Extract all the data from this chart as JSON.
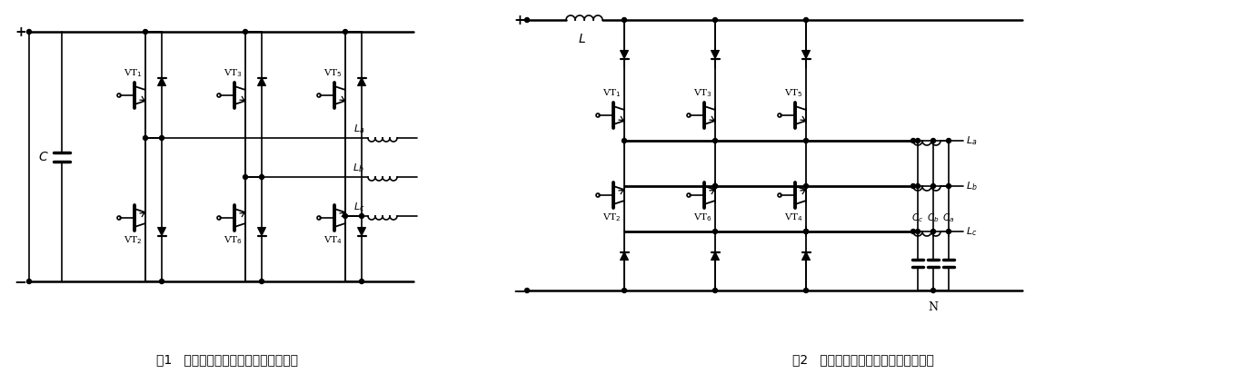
{
  "fig1_caption": "图1   电压型电力有源滤波器的电原理图",
  "fig2_caption": "图2   电流型电力有源滤波器的电原理图",
  "bg_color": "#ffffff",
  "figsize": [
    13.58,
    4.12
  ],
  "dpi": 100
}
